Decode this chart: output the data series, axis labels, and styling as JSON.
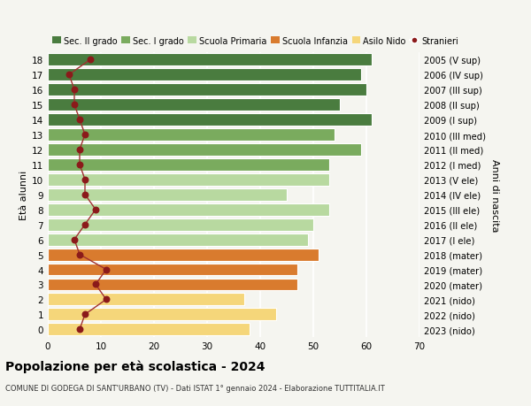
{
  "ages": [
    18,
    17,
    16,
    15,
    14,
    13,
    12,
    11,
    10,
    9,
    8,
    7,
    6,
    5,
    4,
    3,
    2,
    1,
    0
  ],
  "bar_values": [
    61,
    59,
    60,
    55,
    61,
    54,
    59,
    53,
    53,
    45,
    53,
    50,
    49,
    51,
    47,
    47,
    37,
    43,
    38
  ],
  "stranieri": [
    8,
    4,
    5,
    5,
    6,
    7,
    6,
    6,
    7,
    7,
    9,
    7,
    5,
    6,
    11,
    9,
    11,
    7,
    6
  ],
  "right_labels": [
    "2005 (V sup)",
    "2006 (IV sup)",
    "2007 (III sup)",
    "2008 (II sup)",
    "2009 (I sup)",
    "2010 (III med)",
    "2011 (II med)",
    "2012 (I med)",
    "2013 (V ele)",
    "2014 (IV ele)",
    "2015 (III ele)",
    "2016 (II ele)",
    "2017 (I ele)",
    "2018 (mater)",
    "2019 (mater)",
    "2020 (mater)",
    "2021 (nido)",
    "2022 (nido)",
    "2023 (nido)"
  ],
  "bar_colors": [
    "#4a7c3f",
    "#4a7c3f",
    "#4a7c3f",
    "#4a7c3f",
    "#4a7c3f",
    "#7aab5e",
    "#7aab5e",
    "#7aab5e",
    "#b8d9a0",
    "#b8d9a0",
    "#b8d9a0",
    "#b8d9a0",
    "#b8d9a0",
    "#d97b2e",
    "#d97b2e",
    "#d97b2e",
    "#f5d67a",
    "#f5d67a",
    "#f5d67a"
  ],
  "legend_labels": [
    "Sec. II grado",
    "Sec. I grado",
    "Scuola Primaria",
    "Scuola Infanzia",
    "Asilo Nido",
    "Stranieri"
  ],
  "legend_colors": [
    "#4a7c3f",
    "#7aab5e",
    "#b8d9a0",
    "#d97b2e",
    "#f5d67a",
    "#8b1a1a"
  ],
  "title": "Popolazione per età scolastica - 2024",
  "subtitle": "COMUNE DI GODEGA DI SANT'URBANO (TV) - Dati ISTAT 1° gennaio 2024 - Elaborazione TUTTITALIA.IT",
  "ylabel_left": "Età alunni",
  "ylabel_right": "Anni di nascita",
  "xlim": [
    0,
    70
  ],
  "bg_color": "#f5f5f0",
  "stranieri_color": "#8b1a1a",
  "stranieri_line_color": "#a03030"
}
